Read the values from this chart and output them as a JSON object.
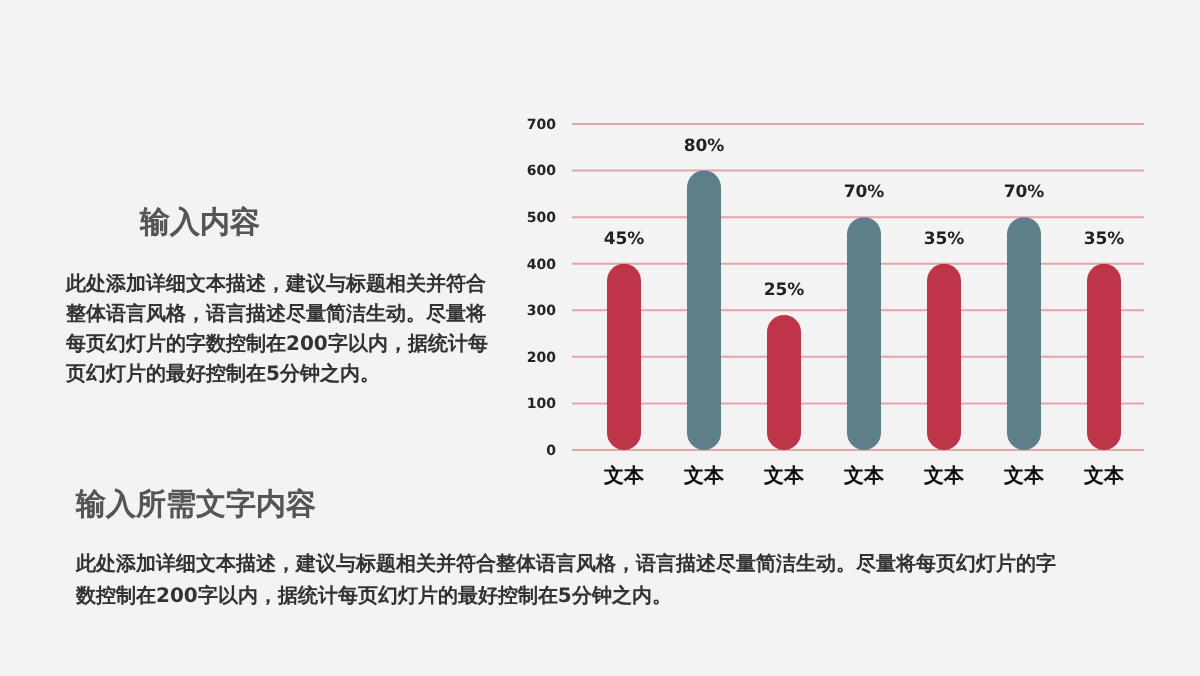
{
  "chart_data": {
    "type": "bar",
    "categories": [
      "文本",
      "文本",
      "文本",
      "文本",
      "文本",
      "文本",
      "文本"
    ],
    "values": [
      400,
      600,
      290,
      500,
      400,
      500,
      400
    ],
    "colors": [
      "#be3448",
      "#5f7f88",
      "#be3448",
      "#5f7f88",
      "#be3448",
      "#5f7f88",
      "#be3448"
    ],
    "ylim": [
      0,
      700
    ],
    "yticks": [
      0,
      100,
      200,
      300,
      400,
      500,
      600,
      700
    ],
    "grid": "y",
    "annotations": [
      "输入内容",
      "此处添加详细文本描述，建议与标题相关并符合整体语言风格，语言描述尽量简洁生动。尽量将每页幻灯片的字数控制在200字以内，据统计每页幻灯片的最好控制在5分钟之内。",
      "输入所需文字内容",
      "此处添加详细文本描述，建议与标题相关并符合整体语言风格，语言描述尽量简洁生动。尽量将每页幻灯片的字数控制在200字以内，据统计每页幻灯片的最好控制在5分钟之内。",
      {
        "text": "45%",
        "y": 400
      },
      {
        "text": "80%",
        "y": 600
      },
      {
        "text": "25%",
        "y": 290
      },
      {
        "text": "70%",
        "y": 500
      },
      {
        "text": "35%",
        "y": 400
      },
      {
        "text": "70%",
        "y": 500
      },
      {
        "text": "35%",
        "y": 400
      }
    ]
  }
}
